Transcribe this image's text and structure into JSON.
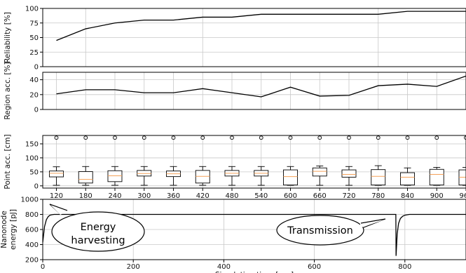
{
  "chart_data": [
    {
      "type": "line",
      "ylabel": "Reliability [%]",
      "ylim": [
        0,
        100
      ],
      "yticks": [
        0,
        25,
        50,
        75,
        100
      ],
      "grid": true,
      "x": [
        120,
        180,
        240,
        300,
        360,
        420,
        480,
        540,
        600,
        660,
        720,
        780,
        840,
        900,
        960
      ],
      "values": [
        45,
        65,
        75,
        80,
        80,
        85,
        85,
        90,
        90,
        90,
        90,
        90,
        95,
        95,
        95
      ]
    },
    {
      "type": "line",
      "ylabel": "Region acc. [%]",
      "ylim": [
        0,
        50
      ],
      "yticks": [
        0,
        20,
        40
      ],
      "grid": true,
      "x": [
        120,
        180,
        240,
        300,
        360,
        420,
        480,
        540,
        600,
        660,
        720,
        780,
        840,
        900,
        960
      ],
      "values": [
        21,
        26.5,
        26.5,
        22.5,
        22.5,
        28,
        22.5,
        17,
        30,
        18,
        19,
        32,
        34,
        31,
        45
      ]
    },
    {
      "type": "box",
      "ylabel": "Point acc. [cm]",
      "ylim": [
        -8,
        180
      ],
      "yticks": [
        0,
        50,
        100,
        150
      ],
      "grid": true,
      "categories": [
        "120",
        "180",
        "240",
        "300",
        "360",
        "420",
        "480",
        "540",
        "600",
        "660",
        "720",
        "780",
        "840",
        "900",
        "960"
      ],
      "boxes": [
        {
          "min": 2,
          "q1": 32,
          "median": 45,
          "q3": 53,
          "max": 68,
          "outlier": 172
        },
        {
          "min": 2,
          "q1": 10,
          "median": 23,
          "q3": 51,
          "max": 69,
          "outlier": 172
        },
        {
          "min": 2,
          "q1": 15,
          "median": 36,
          "q3": 54,
          "max": 69,
          "outlier": 172
        },
        {
          "min": 2,
          "q1": 35,
          "median": 44,
          "q3": 55,
          "max": 69,
          "outlier": 172
        },
        {
          "min": 2,
          "q1": 33,
          "median": 43,
          "q3": 53,
          "max": 69,
          "outlier": 172
        },
        {
          "min": 2,
          "q1": 10,
          "median": 34,
          "q3": 55,
          "max": 69,
          "outlier": 172
        },
        {
          "min": 2,
          "q1": 35,
          "median": 45,
          "q3": 55,
          "max": 69,
          "outlier": 172
        },
        {
          "min": 2,
          "q1": 35,
          "median": 45,
          "q3": 55,
          "max": 69,
          "outlier": 172
        },
        {
          "min": 2,
          "q1": 3,
          "median": 33,
          "q3": 57,
          "max": 69,
          "outlier": 172
        },
        {
          "min": 2,
          "q1": 35,
          "median": 52,
          "q3": 64,
          "max": 71,
          "outlier": 172
        },
        {
          "min": 2,
          "q1": 31,
          "median": 41,
          "q3": 57,
          "max": 69,
          "outlier": 172
        },
        {
          "min": 2,
          "q1": 3,
          "median": 34,
          "q3": 58,
          "max": 72,
          "outlier": 172
        },
        {
          "min": 2,
          "q1": 3,
          "median": 31,
          "q3": 47,
          "max": 64,
          "outlier": 172
        },
        {
          "min": 2,
          "q1": 3,
          "median": 41,
          "q3": 59,
          "max": 66,
          "outlier": 172
        },
        {
          "min": 2,
          "q1": 3,
          "median": 31,
          "q3": 57,
          "max": 66,
          "outlier": 172
        }
      ]
    },
    {
      "type": "line",
      "xlabel": "Simulation time [sec]",
      "ylabel": "Nanonode\nenergy [pJ]",
      "xlim": [
        0,
        935
      ],
      "xticks": [
        0,
        200,
        400,
        600,
        800
      ],
      "ylim": [
        200,
        1000
      ],
      "yticks": [
        200,
        400,
        600,
        800,
        1000
      ],
      "grid": true,
      "x": [
        0,
        4,
        8,
        12,
        16,
        20,
        25,
        30,
        780,
        780.5,
        783,
        786,
        790,
        795,
        800,
        810,
        935
      ],
      "values": [
        430,
        640,
        730,
        770,
        790,
        795,
        800,
        800,
        800,
        250,
        540,
        680,
        745,
        775,
        790,
        800,
        800
      ],
      "annotations": [
        "Energy\nharvesting",
        "Transmission"
      ]
    }
  ]
}
